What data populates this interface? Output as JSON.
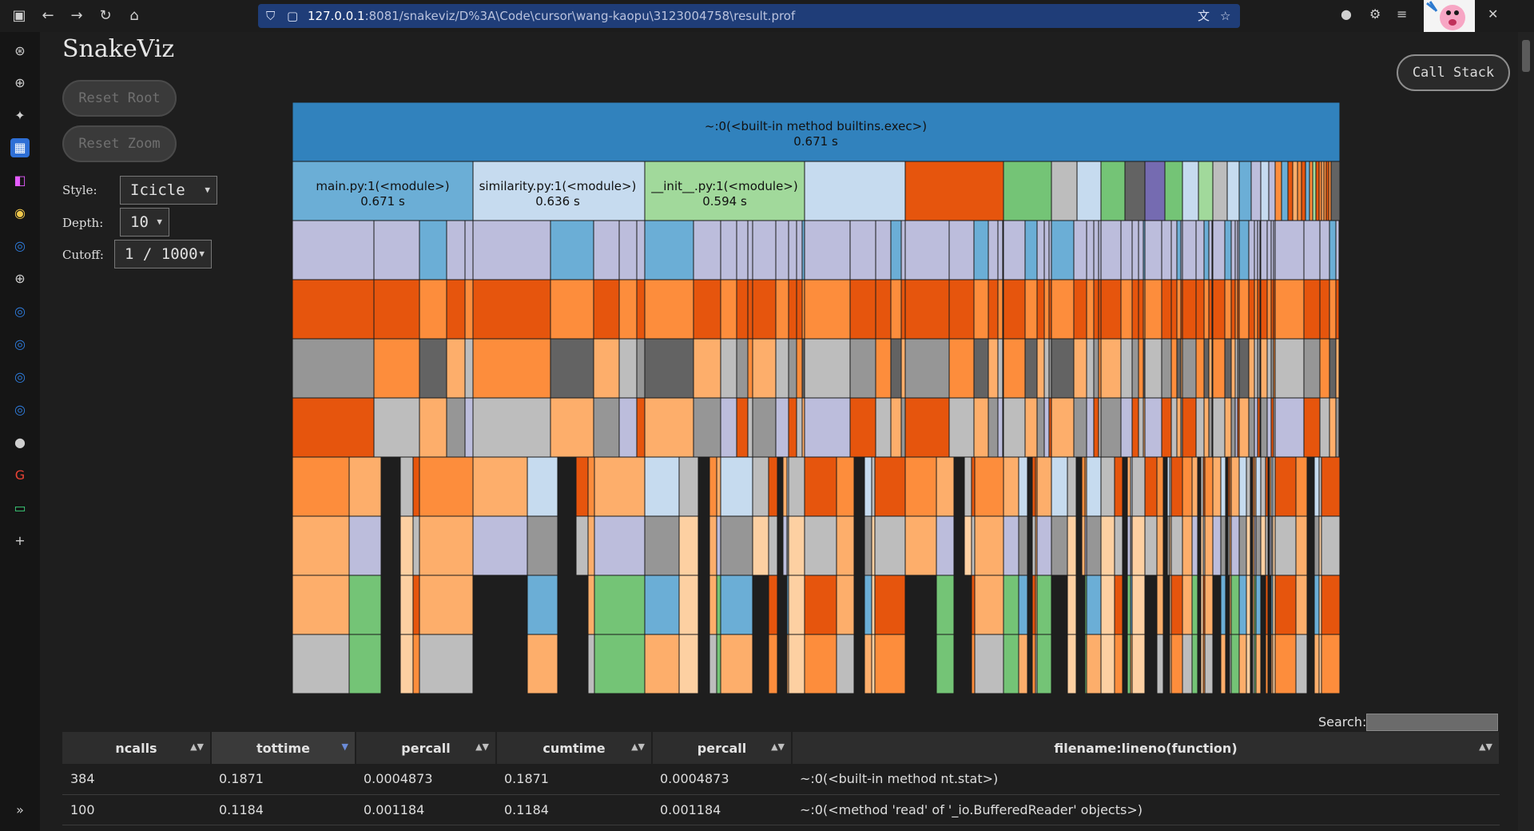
{
  "browser": {
    "url_host": "127.0.0.1",
    "url_rest": ":8081/snakeviz/D%3A\\Code\\cursor\\wang-kaopu\\3123004758\\result.prof"
  },
  "app": {
    "title": "SnakeViz",
    "reset_root_label": "Reset Root",
    "reset_zoom_label": "Reset Zoom",
    "call_stack_label": "Call Stack",
    "style_label": "Style:",
    "style_value": "Icicle",
    "depth_label": "Depth:",
    "depth_value": "10",
    "cutoff_label": "Cutoff:",
    "cutoff_value": "1 / 1000"
  },
  "icicle": {
    "root": {
      "label": "~:0(<built-in method builtins.exec>)",
      "time": "0.671 s"
    },
    "level1": [
      {
        "label": "main.py:1(<module>)",
        "time": "0.671 s"
      },
      {
        "label": "similarity.py:1(<module>)",
        "time": "0.636 s"
      },
      {
        "label": "__init__.py:1(<module>)",
        "time": "0.594 s"
      }
    ]
  },
  "search": {
    "label": "Search:"
  },
  "table": {
    "headers": [
      "ncalls",
      "tottime",
      "percall",
      "cumtime",
      "percall",
      "filename:lineno(function)"
    ],
    "rows": [
      [
        "384",
        "0.1871",
        "0.0004873",
        "0.1871",
        "0.0004873",
        "~:0(<built-in method nt.stat>)"
      ],
      [
        "100",
        "0.1184",
        "0.001184",
        "0.1184",
        "0.001184",
        "~:0(<method 'read' of '_io.BufferedReader' objects>)"
      ]
    ]
  },
  "colors": {
    "root_blue": "#3182bd",
    "light_blue": "#6baed6",
    "pale_blue": "#c6dbef",
    "lavender": "#bcbddc",
    "dark_orange": "#e6550d",
    "orange": "#fd8d3c",
    "light_orange": "#fdae6b",
    "pale_orange": "#fdd0a2",
    "green": "#74c476",
    "light_green": "#a1d99b",
    "gray": "#969696",
    "light_gray": "#bdbdbd",
    "dark_gray": "#636363",
    "purple": "#756bb1"
  }
}
